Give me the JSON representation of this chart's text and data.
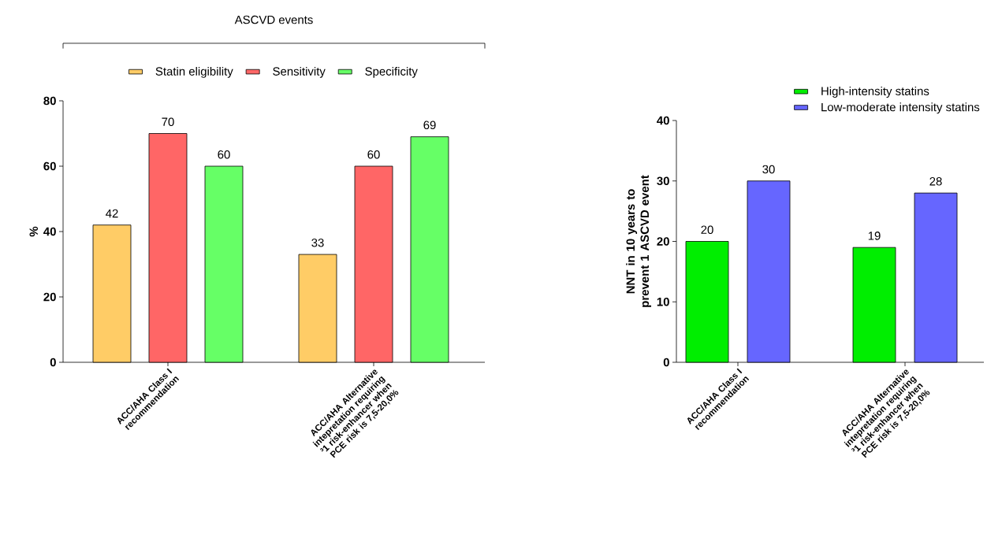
{
  "chart_data": [
    {
      "type": "bar",
      "legend_title": "ASCVD events",
      "ylabel": "%",
      "categories": [
        "ACC/AHA Class I recommendation",
        "ACC/AHA Alternative intepretation requiring ³1 risk-enhancer when PCE risk is 7,5-20,0%"
      ],
      "series": [
        {
          "name": "Statin eligibility",
          "color": "#ffcc66",
          "values": [
            42,
            33
          ]
        },
        {
          "name": "Sensitivity",
          "color": "#ff6666",
          "values": [
            70,
            60
          ]
        },
        {
          "name": "Specificity",
          "color": "#66ff66",
          "values": [
            60,
            69
          ]
        }
      ],
      "ylim": [
        0,
        80
      ],
      "yticks": [
        0,
        20,
        40,
        60,
        80
      ],
      "data_labels": true,
      "legend": "top"
    },
    {
      "type": "bar",
      "ylabel": "NNT in 10 years to prevent 1 ASCVD event",
      "categories": [
        "ACC/AHA Class I recommendation",
        "ACC/AHA Alternative intepretation requiring ³1 risk-enhancer when PCE risk is 7,5-20,0%"
      ],
      "series": [
        {
          "name": "High-intensity statins",
          "color": "#00ee00",
          "values": [
            20,
            19
          ]
        },
        {
          "name": "Low-moderate intensity statins",
          "color": "#6666ff",
          "values": [
            30,
            28
          ]
        }
      ],
      "ylim": [
        0,
        40
      ],
      "yticks": [
        0,
        10,
        20,
        30,
        40
      ],
      "data_labels": true,
      "legend": "top right"
    }
  ]
}
